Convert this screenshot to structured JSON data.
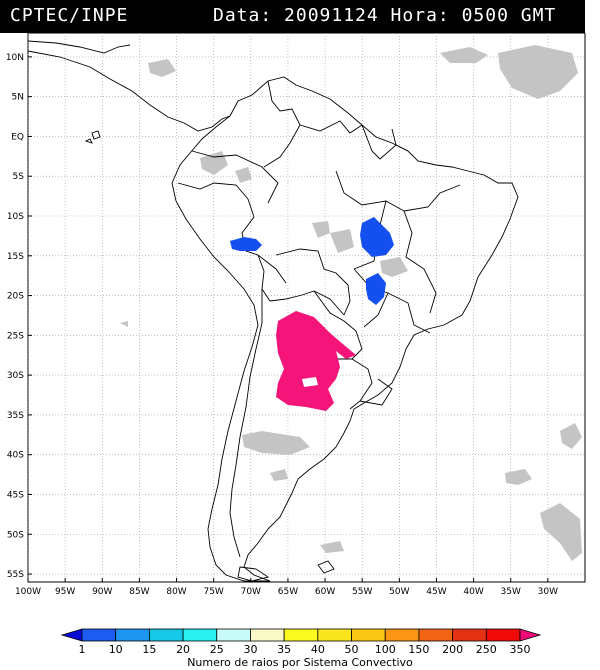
{
  "header": {
    "source": "CPTEC/INPE",
    "datetime": "Data: 20091124 Hora: 0500 GMT"
  },
  "map": {
    "lat_labels": [
      "10N",
      "5N",
      "EQ",
      "5S",
      "10S",
      "15S",
      "20S",
      "25S",
      "30S",
      "35S",
      "40S",
      "45S",
      "50S",
      "55S"
    ],
    "lon_labels": [
      "100W",
      "95W",
      "90W",
      "85W",
      "80W",
      "75W",
      "70W",
      "65W",
      "60W",
      "55W",
      "50W",
      "45W",
      "40W",
      "35W",
      "30W"
    ],
    "lon_range": [
      -100,
      -25
    ],
    "lat_range": [
      -56,
      13
    ],
    "grid": true
  },
  "colorbar": {
    "title": "Numero de raios por Sistema Convectivo",
    "ticks": [
      "1",
      "10",
      "15",
      "20",
      "25",
      "30",
      "35",
      "40",
      "50",
      "100",
      "150",
      "200",
      "250",
      "350"
    ],
    "colors": [
      "#0a0ad8",
      "#1c5cf0",
      "#1e96f0",
      "#14c8e6",
      "#28f0f0",
      "#c8fafa",
      "#fafac8",
      "#fafa1e",
      "#fae61e",
      "#fac814",
      "#fa9614",
      "#f06414",
      "#e63214",
      "#f00a0a",
      "#f00a78"
    ]
  },
  "systems": [
    {
      "name": "peru-cluster",
      "lightning_class": "10",
      "color": "#1450f0"
    },
    {
      "name": "mato-grosso-cluster",
      "lightning_class": "10",
      "color": "#1450f0"
    },
    {
      "name": "mato-grosso-south-cluster",
      "lightning_class": "10",
      "color": "#1450f0"
    },
    {
      "name": "argentina-paraguay-cluster",
      "lightning_class": "350",
      "color": "#f5147a"
    }
  ]
}
